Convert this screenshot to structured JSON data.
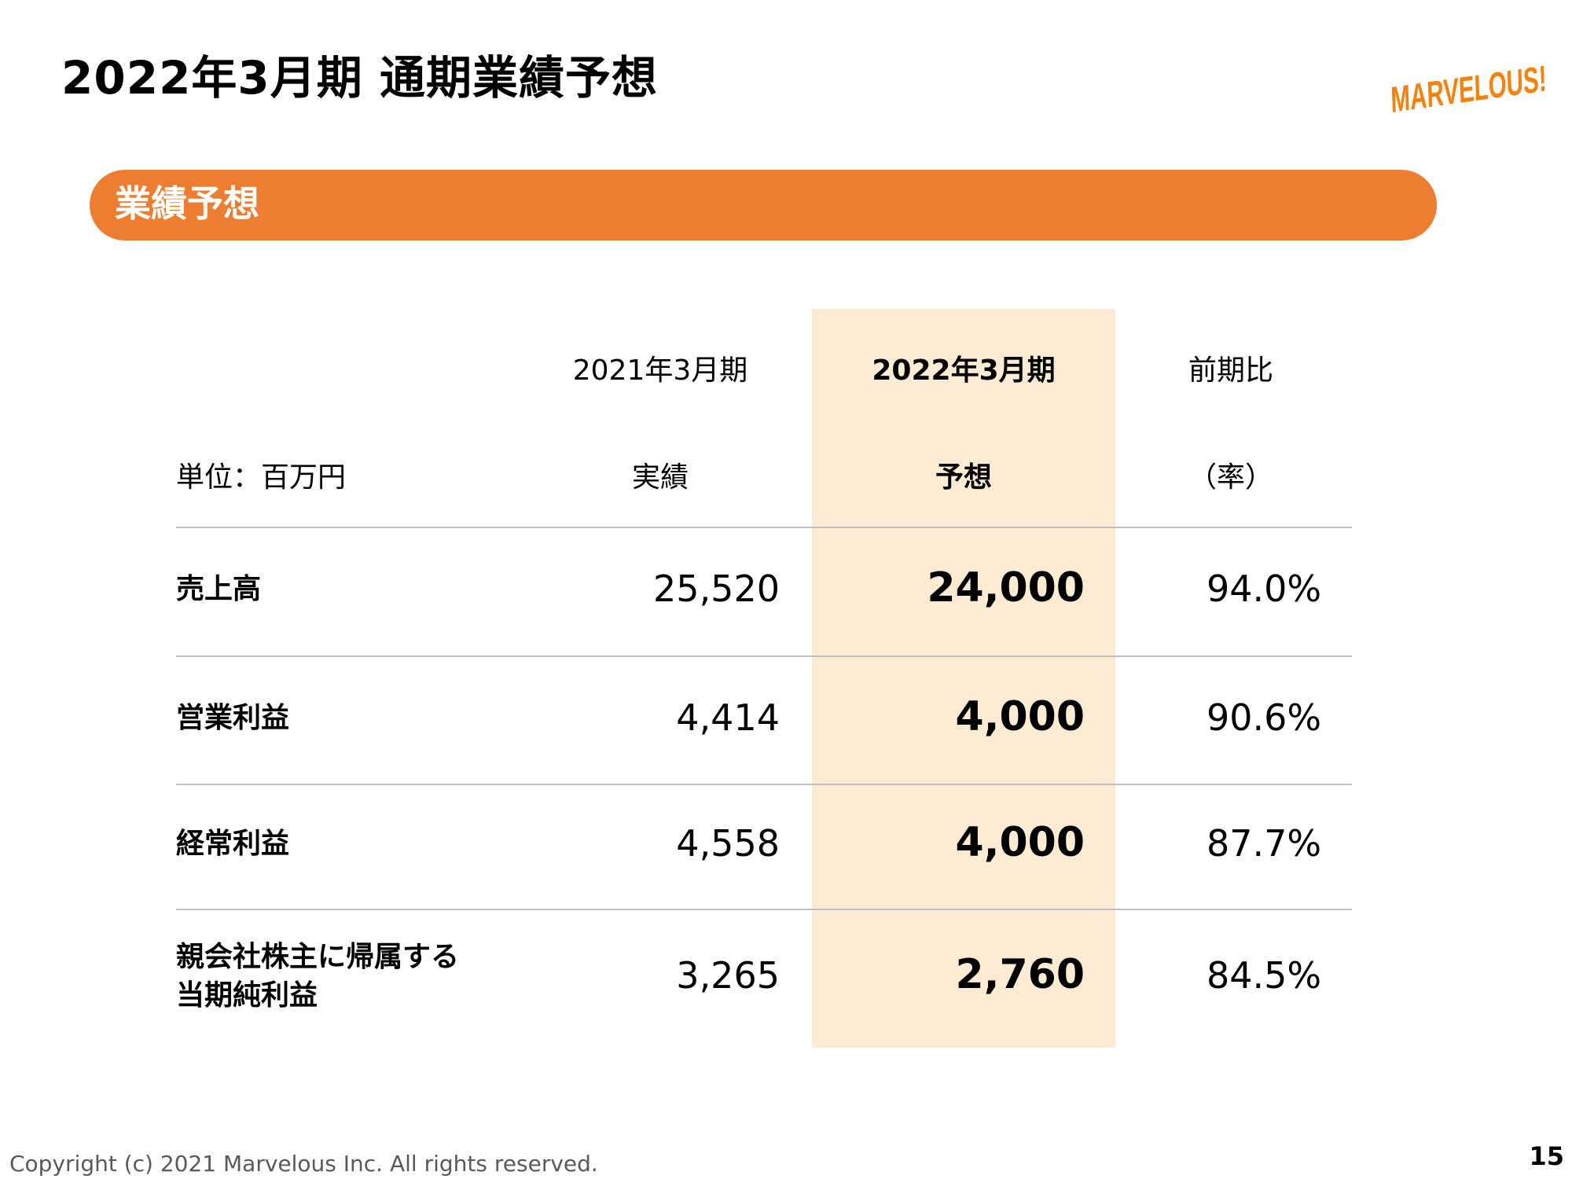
{
  "slide": {
    "title": "2022年3月期 通期業績予想",
    "section_label": "業績予想",
    "logo_text": "MARVELOUS!",
    "accent_color": "#ed7d31",
    "highlight_color": "#fdebd3"
  },
  "table": {
    "headers": {
      "col_2021_year": "2021年3月期",
      "col_2021_type": "実績",
      "col_2022_year": "2022年3月期",
      "col_2022_type": "予想",
      "col_ratio_top": "前期比",
      "col_ratio_bottom": "（率）",
      "unit": "単位：百万円"
    },
    "rows": [
      {
        "label_line1": "売上高",
        "label_line2": "",
        "actual_2021": "25,520",
        "forecast_2022": "24,000",
        "ratio": "94.0%"
      },
      {
        "label_line1": "営業利益",
        "label_line2": "",
        "actual_2021": "4,414",
        "forecast_2022": "4,000",
        "ratio": "90.6%"
      },
      {
        "label_line1": "経常利益",
        "label_line2": "",
        "actual_2021": "4,558",
        "forecast_2022": "4,000",
        "ratio": "87.7%"
      },
      {
        "label_line1": "親会社株主に帰属する",
        "label_line2": "当期純利益",
        "actual_2021": "3,265",
        "forecast_2022": "2,760",
        "ratio": "84.5%"
      }
    ]
  },
  "footer": {
    "copyright": "Copyright (c) 2021 Marvelous Inc. All rights reserved.",
    "page_number": "15"
  }
}
